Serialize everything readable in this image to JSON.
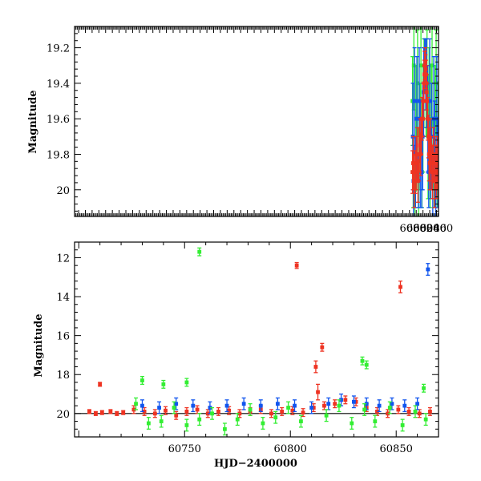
{
  "colors": {
    "green": "#33ee33",
    "blue": "#1155ee",
    "red": "#ee3322",
    "model": "#000000",
    "axis": "#000000"
  },
  "chart_data": [
    {
      "type": "scatter",
      "title": "",
      "xlabel": "",
      "ylabel": "Magnitude",
      "xlim": [
        59788,
        60866
      ],
      "ylim": [
        20.15,
        19.08
      ],
      "y_inverted": true,
      "grid": false,
      "x_ticks": [
        60800,
        60820,
        60840,
        60860
      ],
      "y_ticks": [
        19.2,
        19.4,
        19.6,
        19.8,
        20
      ],
      "x_tick_labels": [
        "60800",
        "60820",
        "60840",
        "60860"
      ],
      "y_tick_labels": [
        "19.2",
        "19.4",
        "19.6",
        "19.8",
        "20"
      ],
      "model_curve": {
        "x": [
          60788,
          60796,
          60804,
          60810,
          60814,
          60818,
          60821,
          60824,
          60826,
          60828,
          60830,
          60833,
          60836,
          60840,
          60846,
          60854,
          60866
        ],
        "y": [
          19.88,
          19.88,
          19.87,
          19.84,
          19.78,
          19.64,
          19.48,
          19.35,
          19.3,
          19.32,
          19.42,
          19.6,
          19.75,
          19.84,
          19.87,
          19.88,
          19.88
        ]
      },
      "series": [
        {
          "color": "green",
          "x": [
            60789,
            60791,
            60793,
            60796,
            60799,
            60801,
            60804,
            60807,
            60811,
            60814,
            60817,
            60820,
            60823,
            60826,
            60829,
            60832,
            60835,
            60838,
            60841,
            60844,
            60847,
            60850,
            60853,
            60856,
            60859,
            60862,
            60865
          ],
          "y": [
            19.5,
            19.9,
            19.3,
            20.0,
            19.6,
            19.8,
            19.4,
            19.9,
            19.7,
            19.3,
            19.9,
            19.6,
            19.4,
            19.3,
            19.5,
            19.4,
            19.7,
            19.5,
            19.9,
            19.6,
            19.3,
            19.8,
            19.9,
            19.6,
            19.4,
            19.9,
            19.7
          ],
          "err": [
            0.25,
            0.2,
            0.25,
            0.15,
            0.3,
            0.2,
            0.3,
            0.25,
            0.3,
            0.3,
            0.2,
            0.3,
            0.25,
            0.15,
            0.2,
            0.3,
            0.35,
            0.3,
            0.2,
            0.3,
            0.35,
            0.2,
            0.2,
            0.3,
            0.3,
            0.2,
            0.3
          ]
        },
        {
          "color": "blue",
          "x": [
            60790,
            60792,
            60795,
            60798,
            60802,
            60806,
            60809,
            60812,
            60816,
            60819,
            60822,
            60825,
            60828,
            60831,
            60834,
            60837,
            60840,
            60843,
            60846,
            60849,
            60852,
            60855,
            60858,
            60861,
            60864
          ],
          "y": [
            19.7,
            19.95,
            19.5,
            19.9,
            19.6,
            19.95,
            19.5,
            19.8,
            19.9,
            19.7,
            19.45,
            19.3,
            19.35,
            19.4,
            19.6,
            19.9,
            19.5,
            19.85,
            19.7,
            19.95,
            19.6,
            19.8,
            19.95,
            19.6,
            19.85
          ],
          "err": [
            0.3,
            0.2,
            0.3,
            0.2,
            0.35,
            0.15,
            0.3,
            0.3,
            0.2,
            0.3,
            0.25,
            0.15,
            0.2,
            0.25,
            0.3,
            0.2,
            0.35,
            0.2,
            0.3,
            0.2,
            0.35,
            0.3,
            0.2,
            0.35,
            0.25
          ]
        },
        {
          "color": "red",
          "x": [
            60789,
            60791,
            60794,
            60797,
            60800,
            60803,
            60805,
            60808,
            60811,
            60813,
            60815,
            60817,
            60819,
            60821,
            60823,
            60824,
            60825,
            60826,
            60827,
            60828,
            60829,
            60830,
            60831,
            60832,
            60834,
            60836,
            60838,
            60840,
            60842,
            60845,
            60848,
            60851,
            60854,
            60857,
            60860,
            60863,
            60865
          ],
          "y": [
            19.9,
            19.85,
            19.95,
            19.9,
            19.85,
            19.8,
            19.95,
            19.8,
            19.75,
            19.8,
            19.7,
            19.6,
            19.6,
            19.5,
            19.4,
            19.35,
            19.3,
            19.3,
            19.28,
            19.32,
            19.35,
            19.4,
            19.45,
            19.5,
            19.6,
            19.7,
            19.8,
            19.85,
            19.75,
            19.85,
            19.9,
            19.8,
            19.95,
            19.85,
            19.9,
            19.85,
            19.9
          ],
          "err": [
            0.12,
            0.15,
            0.15,
            0.12,
            0.15,
            0.15,
            0.12,
            0.15,
            0.15,
            0.12,
            0.1,
            0.12,
            0.1,
            0.1,
            0.1,
            0.08,
            0.08,
            0.08,
            0.08,
            0.08,
            0.08,
            0.1,
            0.1,
            0.1,
            0.12,
            0.12,
            0.15,
            0.15,
            0.15,
            0.15,
            0.15,
            0.15,
            0.15,
            0.15,
            0.15,
            0.15,
            0.15
          ]
        }
      ]
    },
    {
      "type": "scatter",
      "title": "",
      "xlabel": "HJD−2400000",
      "ylabel": "Magnitude",
      "xlim": [
        60698,
        60870
      ],
      "ylim": [
        21.2,
        11.2
      ],
      "y_inverted": true,
      "grid": false,
      "x_ticks": [
        60750,
        60800,
        60850
      ],
      "y_ticks": [
        12,
        14,
        16,
        18,
        20
      ],
      "x_tick_labels": [
        "60750",
        "60800",
        "60850"
      ],
      "y_tick_labels": [
        "12",
        "14",
        "16",
        "18",
        "20"
      ],
      "model_line_y": 20.0,
      "series": [
        {
          "color": "red",
          "x": [
            60705,
            60708,
            60711,
            60715,
            60718,
            60721,
            60726,
            60731,
            60736,
            60741,
            60746,
            60751,
            60756,
            60761,
            60766,
            60771,
            60776,
            60781,
            60786,
            60791,
            60796,
            60801,
            60806,
            60811,
            60813,
            60816,
            60821,
            60826,
            60831,
            60836,
            60841,
            60846,
            60851,
            60856,
            60861,
            60866,
            60710,
            60803,
            60812,
            60815,
            60852
          ],
          "y": [
            19.9,
            20.0,
            19.95,
            19.9,
            20.0,
            19.95,
            19.8,
            19.9,
            20.0,
            19.85,
            20.1,
            19.9,
            19.8,
            20.0,
            19.9,
            19.85,
            20.0,
            19.9,
            19.8,
            20.0,
            19.9,
            19.85,
            19.95,
            19.7,
            18.9,
            19.6,
            19.5,
            19.3,
            19.4,
            19.7,
            19.9,
            20.0,
            19.8,
            19.9,
            20.0,
            19.9,
            18.5,
            12.4,
            17.6,
            16.6,
            13.5
          ],
          "err": [
            0.1,
            0.1,
            0.1,
            0.1,
            0.1,
            0.1,
            0.2,
            0.2,
            0.2,
            0.2,
            0.2,
            0.2,
            0.2,
            0.2,
            0.2,
            0.2,
            0.2,
            0.2,
            0.2,
            0.2,
            0.2,
            0.2,
            0.2,
            0.2,
            0.4,
            0.2,
            0.2,
            0.2,
            0.2,
            0.2,
            0.2,
            0.2,
            0.2,
            0.2,
            0.2,
            0.2,
            0.1,
            0.15,
            0.3,
            0.2,
            0.3
          ]
        },
        {
          "color": "blue",
          "x": [
            60730,
            60738,
            60746,
            60754,
            60762,
            60770,
            60778,
            60786,
            60794,
            60802,
            60810,
            60818,
            60824,
            60830,
            60836,
            60842,
            60848,
            60854,
            60860,
            60865
          ],
          "y": [
            19.6,
            19.7,
            19.5,
            19.6,
            19.7,
            19.6,
            19.5,
            19.6,
            19.5,
            19.6,
            19.7,
            19.5,
            19.3,
            19.4,
            19.5,
            19.6,
            19.5,
            19.6,
            19.5,
            12.6
          ],
          "err": [
            0.3,
            0.3,
            0.3,
            0.3,
            0.3,
            0.3,
            0.3,
            0.3,
            0.3,
            0.3,
            0.3,
            0.3,
            0.3,
            0.3,
            0.3,
            0.3,
            0.3,
            0.3,
            0.3,
            0.3
          ]
        },
        {
          "color": "green",
          "x": [
            60727,
            60733,
            60739,
            60745,
            60751,
            60757,
            60763,
            60769,
            60775,
            60781,
            60787,
            60793,
            60799,
            60805,
            60817,
            60823,
            60829,
            60835,
            60840,
            60847,
            60853,
            60859,
            60864,
            60730,
            60740,
            60751,
            60757,
            60834,
            60836,
            60863
          ],
          "y": [
            19.5,
            20.5,
            20.4,
            19.7,
            20.6,
            20.3,
            20.0,
            20.8,
            20.3,
            19.8,
            20.5,
            20.2,
            19.7,
            20.4,
            20.1,
            19.6,
            20.5,
            19.8,
            20.4,
            19.7,
            20.6,
            19.9,
            20.3,
            18.3,
            18.5,
            18.4,
            11.7,
            17.3,
            17.5,
            18.7
          ],
          "err": [
            0.3,
            0.3,
            0.3,
            0.3,
            0.3,
            0.3,
            0.3,
            0.3,
            0.3,
            0.3,
            0.3,
            0.3,
            0.3,
            0.3,
            0.3,
            0.3,
            0.3,
            0.3,
            0.3,
            0.3,
            0.3,
            0.3,
            0.3,
            0.2,
            0.2,
            0.2,
            0.2,
            0.2,
            0.2,
            0.2
          ]
        }
      ]
    }
  ]
}
